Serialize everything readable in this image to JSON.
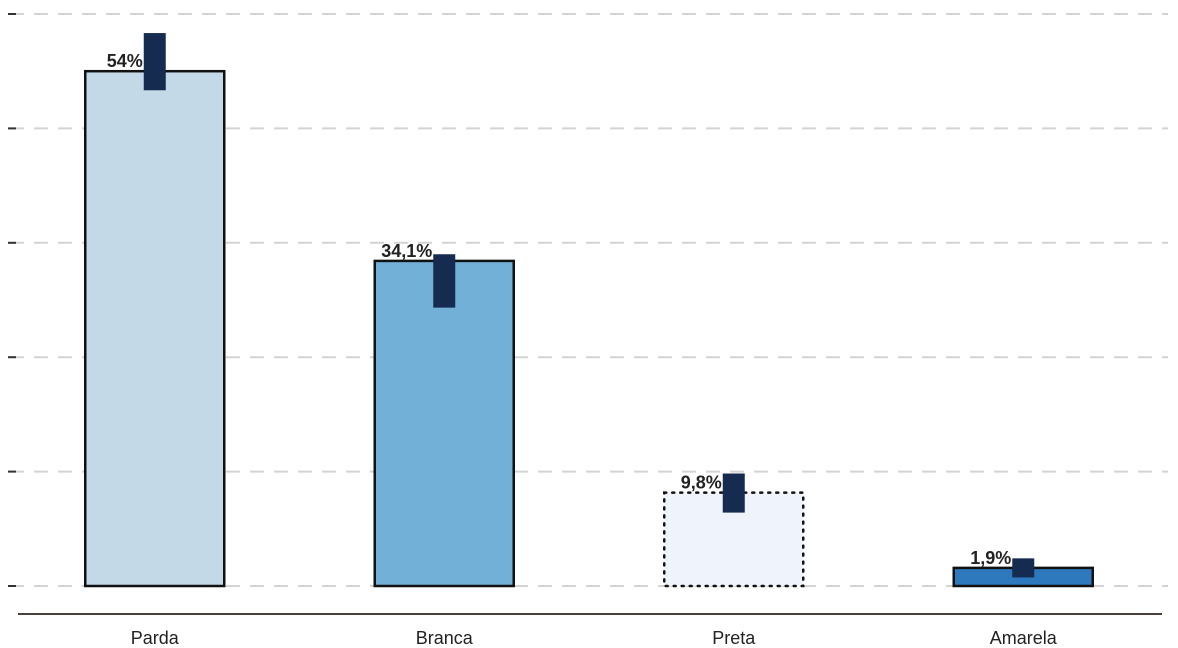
{
  "chart_data": {
    "type": "bar",
    "title": "",
    "xlabel": "",
    "ylabel": "",
    "categories": [
      "Parda",
      "Branca",
      "Preta",
      "Amarela"
    ],
    "values": [
      54.0,
      34.1,
      9.8,
      1.9
    ],
    "data_labels": [
      "54%",
      "34,1%",
      "9,8%",
      "1,9%"
    ],
    "error_ranges": [
      [
        52.0,
        58.0
      ],
      [
        29.2,
        34.8
      ],
      [
        7.7,
        11.8
      ],
      [
        0.9,
        2.9
      ]
    ],
    "bar_colors": [
      "#c3d9e8",
      "#72b0d7",
      "#eef3fc",
      "#2e79be"
    ],
    "bar_border_styles": [
      "solid",
      "solid",
      "dotted",
      "solid"
    ],
    "error_bar_color": "#152b4f",
    "ylim": [
      0,
      60
    ],
    "y_gridline_step": 12,
    "grid": "horizontal dashed",
    "legend": "none"
  }
}
